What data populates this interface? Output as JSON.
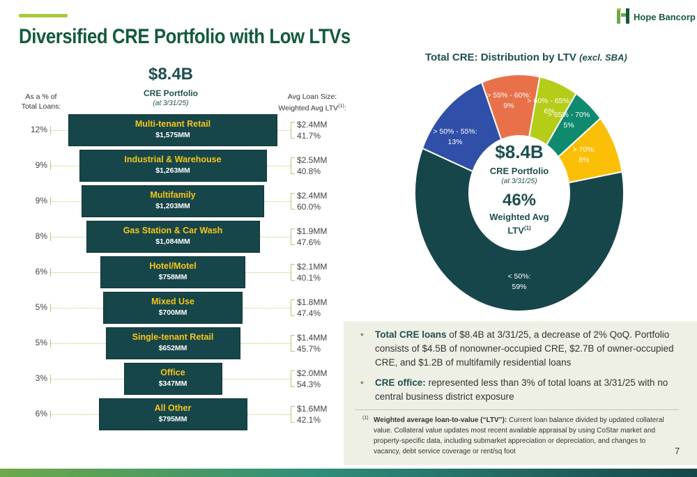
{
  "header": {
    "title": "Diversified CRE Portfolio with Low LTVs",
    "logo_text": "Hope Bancorp",
    "logo_icon": "hope-bancorp-logo-icon"
  },
  "funnel": {
    "headline_value": "$8.4B",
    "headline_label": "CRE Portfolio",
    "headline_date": "(at 3/31/25)",
    "left_header_line1": "As a % of",
    "left_header_line2": "Total Loans:",
    "right_header_line1": "Avg Loan Size:",
    "right_header_line2": "Weighted Avg LTV",
    "right_header_sup": "(1)",
    "right_header_colon": ":"
  },
  "donut": {
    "title": "Total CRE: Distribution by LTV",
    "title_note": "(excl. SBA)",
    "center_value": "$8.4B",
    "center_label": "CRE Portfolio",
    "center_date": "(at 3/31/25)",
    "avg_value": "46%",
    "avg_label_line1": "Weighted Avg",
    "avg_label_line2": "LTV",
    "avg_label_sup": "(1)"
  },
  "chart_data": [
    {
      "type": "bar",
      "categories": [
        "Multi-tenant Retail",
        "Industrial & Warehouse",
        "Multifamily",
        "Gas Station & Car Wash",
        "Hotel/Motel",
        "Mixed Use",
        "Single-tenant Retail",
        "Office",
        "All Other"
      ],
      "amounts_mm": [
        1575,
        1263,
        1203,
        1084,
        758,
        700,
        652,
        347,
        795
      ],
      "amount_labels": [
        "$1,575MM",
        "$1,263MM",
        "$1,203MM",
        "$1,084MM",
        "$758MM",
        "$700MM",
        "$652MM",
        "$347MM",
        "$795MM"
      ],
      "pct_of_total_loans": [
        "12%",
        "9%",
        "9%",
        "8%",
        "6%",
        "5%",
        "5%",
        "3%",
        "6%"
      ],
      "avg_loan_size": [
        "$2.4MM",
        "$2.5MM",
        "$2.4MM",
        "$1.9MM",
        "$2.1MM",
        "$1.8MM",
        "$1.4MM",
        "$2.0MM",
        "$1.6MM"
      ],
      "weighted_avg_ltv": [
        "41.7%",
        "40.8%",
        "60.0%",
        "47.6%",
        "40.1%",
        "47.4%",
        "45.7%",
        "54.3%",
        "42.1%"
      ]
    },
    {
      "type": "pie",
      "title": "Total CRE: Distribution by LTV (excl. SBA)",
      "slices": [
        {
          "label": "< 50%:",
          "value": 59,
          "value_label": "59%",
          "color": "#17464a"
        },
        {
          "label": "> 50% - 55%:",
          "value": 13,
          "value_label": "13%",
          "color": "#2f4fa8"
        },
        {
          "label": "> 55% - 60%:",
          "value": 9,
          "value_label": "9%",
          "color": "#e8714a"
        },
        {
          "label": "> 60% - 65%:",
          "value": 6,
          "value_label": "6%",
          "color": "#b5cc18"
        },
        {
          "label": "> 65% - 70%",
          "value": 5,
          "value_label": "5%",
          "color": "#0f8a6e"
        },
        {
          "label": "> 70%:",
          "value": 8,
          "value_label": "8%",
          "color": "#fbbf08"
        }
      ]
    }
  ],
  "notes": {
    "bullet1_bold": "Total CRE loans",
    "bullet1_text": " of $8.4B at 3/31/25, a decrease of 2% QoQ. Portfolio consists of $4.5B of nonowner-occupied CRE, $2.7B of owner-occupied CRE, and $1.2B of multifamily residential loans",
    "bullet2_bold": "CRE office:",
    "bullet2_text": " represented less than 3% of total loans at 3/31/25 with no central business district exposure",
    "footnote_num": "(1)",
    "footnote_bold": "Weighted average loan-to-value (“LTV”):",
    "footnote_text": "  Current loan balance divided by updated collateral value. Collateral value updates most recent available appraisal by using CoStar market and property-specific data, including submarket appreciation or depreciation, and changes to vacancy, debt service coverage or rent/sq foot"
  },
  "page_number": "7"
}
